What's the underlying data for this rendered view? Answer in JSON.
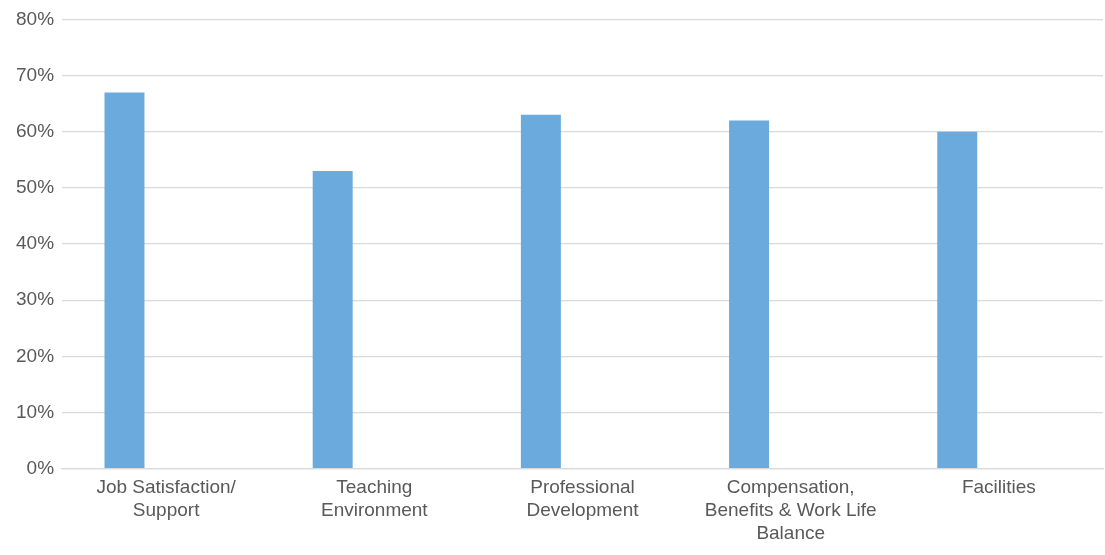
{
  "chart_data": {
    "type": "bar",
    "categories": [
      "Job Satisfaction/ Support",
      "Teaching Environment",
      "Professional Development",
      "Compensation, Benefits & Work Life Balance",
      "Facilities"
    ],
    "values": [
      67,
      53,
      63,
      62,
      60
    ],
    "color": "#6aaadc",
    "ylim": [
      0,
      80
    ],
    "yticks": [
      {
        "value": 0,
        "label": "0%"
      },
      {
        "value": 10,
        "label": "10%"
      },
      {
        "value": 20,
        "label": "20%"
      },
      {
        "value": 30,
        "label": "30%"
      },
      {
        "value": 40,
        "label": "40%"
      },
      {
        "value": 50,
        "label": "50%"
      },
      {
        "value": 60,
        "label": "60%"
      },
      {
        "value": 70,
        "label": "70%"
      },
      {
        "value": 80,
        "label": "80%"
      }
    ],
    "grid": "y",
    "legend": false
  }
}
